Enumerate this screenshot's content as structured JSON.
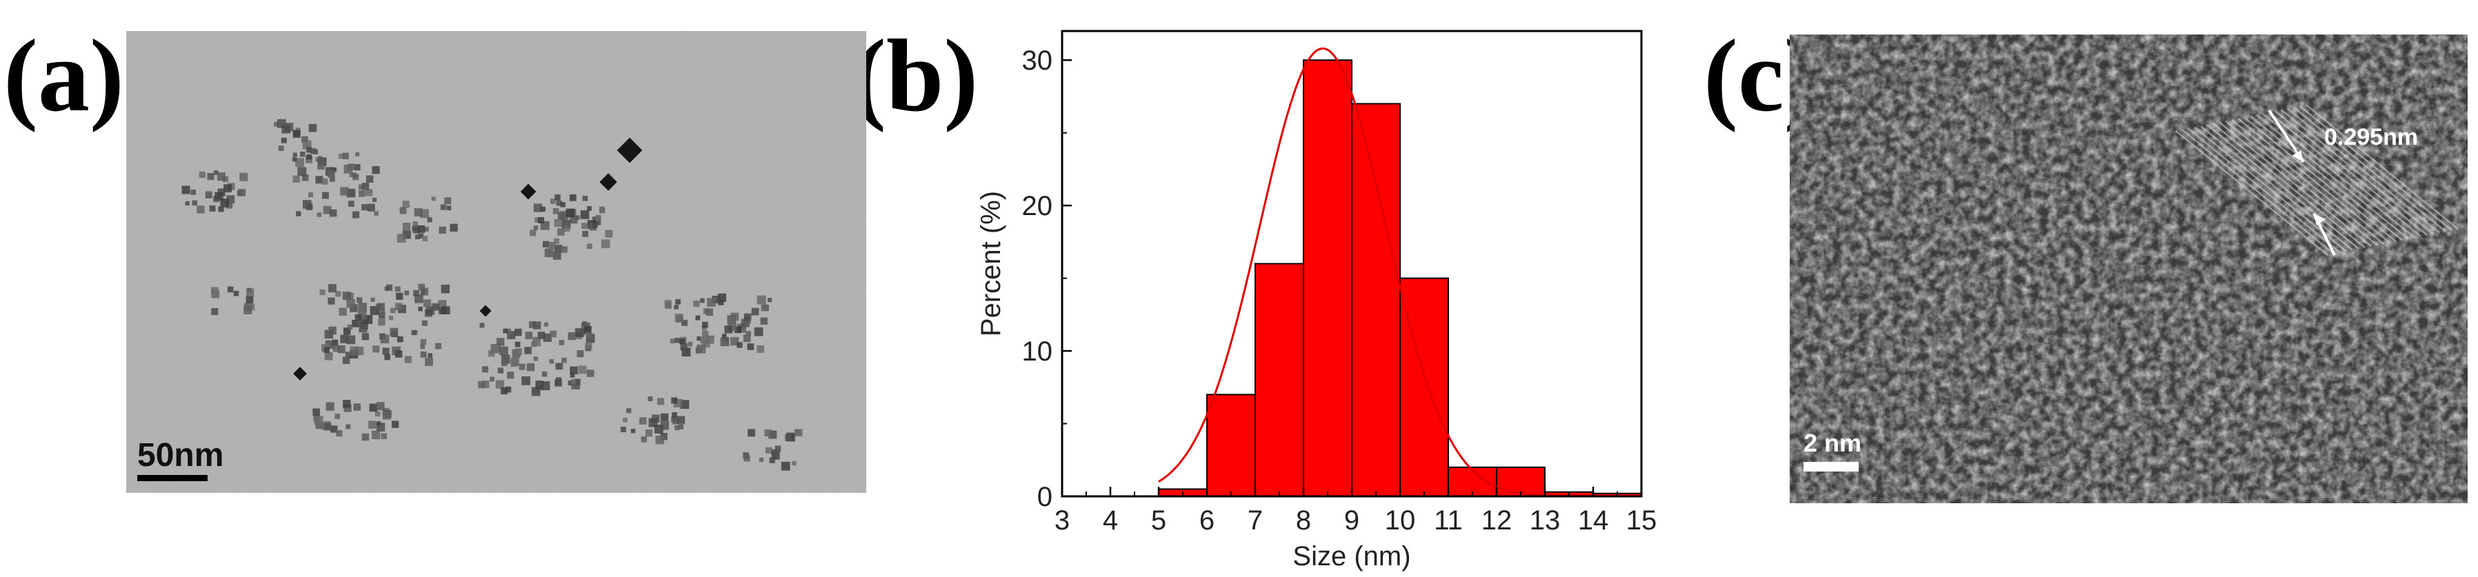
{
  "panels": {
    "a": {
      "label": "(a)",
      "scale_bar": "50nm"
    },
    "b": {
      "label": "(b)"
    },
    "c": {
      "label": "(c)",
      "scale_bar": "2 nm",
      "lattice_spacing": "0.295nm"
    }
  },
  "chart_data": {
    "type": "bar",
    "title": "",
    "xlabel": "Size (nm)",
    "ylabel": "Percent (%)",
    "xlim": [
      3,
      15
    ],
    "ylim": [
      0,
      32
    ],
    "xticks": [
      3,
      4,
      5,
      6,
      7,
      8,
      9,
      10,
      11,
      12,
      13,
      14,
      15
    ],
    "yticks": [
      0,
      10,
      20,
      30
    ],
    "x": [
      5,
      6,
      7,
      8,
      9,
      10,
      11,
      12,
      13,
      14
    ],
    "values": [
      0.5,
      7,
      16,
      30,
      27,
      15,
      2,
      2,
      0.3,
      0.2
    ],
    "fit_curve": "gaussian",
    "colors": {
      "bar": "#ff0000",
      "curve": "#e00000",
      "edge": "#000000"
    }
  }
}
